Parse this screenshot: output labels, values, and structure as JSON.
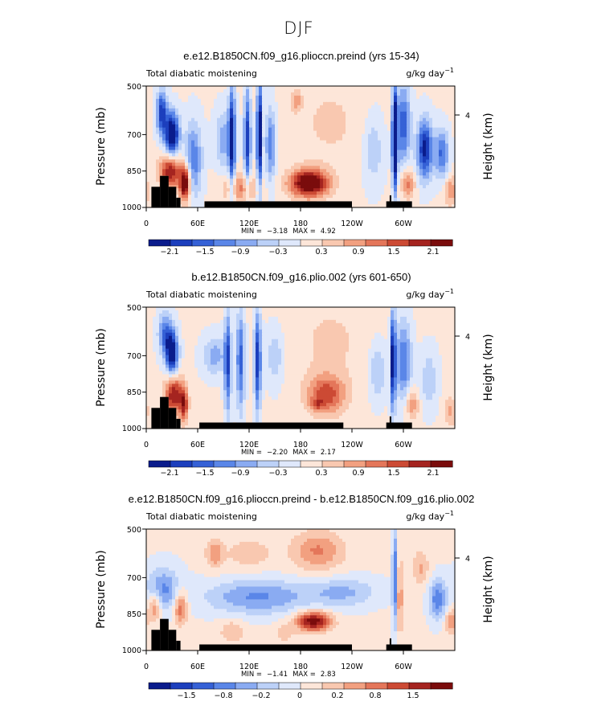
{
  "figure": {
    "title": "DJF"
  },
  "palette": {
    "frame": "#000000",
    "land": "#000000",
    "colors": [
      "#0a1c8c",
      "#1c3fbd",
      "#3561d6",
      "#5a86e8",
      "#8aabf2",
      "#bcd1f8",
      "#dfe8fb",
      "#fde6d9",
      "#f9c8b0",
      "#f2a080",
      "#e4765a",
      "#cc4a34",
      "#a52420",
      "#7a0c0c"
    ]
  },
  "chart_data": [
    {
      "type": "heatmap",
      "title": "e.e12.B1850CN.f09_g16.plioccn.preind (yrs 15-34)",
      "label_left": "Total diabatic moistening",
      "label_right_base": "g/kg day",
      "label_right_exp": "−1",
      "ylabel": "Pressure (mb)",
      "ylabel_right": "Height (km)",
      "yticks": [
        "500",
        "700",
        "850",
        "1000"
      ],
      "yticks_right": [
        "4"
      ],
      "xticks": [
        "0",
        "60E",
        "120E",
        "180",
        "120W",
        "60W"
      ],
      "xlim_deg": [
        0,
        360
      ],
      "ylim_mb": [
        1000,
        500
      ],
      "min_label": "MIN =",
      "min_value": "−3.18",
      "max_label": "MAX =",
      "max_value": "4.92",
      "colorbar_labels": [
        "−2.1",
        "−1.5",
        "−0.9",
        "−0.3",
        "0.3",
        "0.9",
        "1.5",
        "2.1"
      ],
      "land_segments": [
        {
          "lon0": 6,
          "lon1": 16,
          "p_top": 915
        },
        {
          "lon0": 16,
          "lon1": 26,
          "p_top": 870
        },
        {
          "lon0": 26,
          "lon1": 35,
          "p_top": 915
        },
        {
          "lon0": 35,
          "lon1": 40,
          "p_top": 960
        },
        {
          "lon0": 68,
          "lon1": 240,
          "p_top": 975
        },
        {
          "lon0": 284,
          "lon1": 286,
          "p_top": 950
        },
        {
          "lon0": 280,
          "lon1": 310,
          "p_top": 975
        }
      ],
      "features": [
        {
          "lon": 30,
          "p": 700,
          "sl": 8,
          "sp": 90,
          "amp": -2.6
        },
        {
          "lon": 18,
          "p": 610,
          "sl": 6,
          "sp": 90,
          "amp": -1.8
        },
        {
          "lon": 28,
          "p": 850,
          "sl": 12,
          "sp": 70,
          "amp": 1.8
        },
        {
          "lon": 45,
          "p": 900,
          "sl": 6,
          "sp": 70,
          "amp": 2.4
        },
        {
          "lon": 55,
          "p": 800,
          "sl": 10,
          "sp": 150,
          "amp": -1.2
        },
        {
          "lon": 100,
          "p": 720,
          "sl": 4,
          "sp": 220,
          "amp": -2.0
        },
        {
          "lon": 118,
          "p": 720,
          "sl": 4,
          "sp": 200,
          "amp": -1.8
        },
        {
          "lon": 132,
          "p": 700,
          "sl": 3,
          "sp": 220,
          "amp": -2.5
        },
        {
          "lon": 145,
          "p": 740,
          "sl": 6,
          "sp": 150,
          "amp": -1.2
        },
        {
          "lon": 90,
          "p": 720,
          "sl": 10,
          "sp": 120,
          "amp": -0.8
        },
        {
          "lon": 110,
          "p": 920,
          "sl": 20,
          "sp": 60,
          "amp": 0.9
        },
        {
          "lon": 190,
          "p": 900,
          "sl": 22,
          "sp": 55,
          "amp": 2.4
        },
        {
          "lon": 175,
          "p": 560,
          "sl": 6,
          "sp": 40,
          "amp": 0.7
        },
        {
          "lon": 290,
          "p": 720,
          "sl": 3,
          "sp": 200,
          "amp": -3.0
        },
        {
          "lon": 300,
          "p": 660,
          "sl": 8,
          "sp": 160,
          "amp": -1.5
        },
        {
          "lon": 325,
          "p": 760,
          "sl": 9,
          "sp": 120,
          "amp": -2.0
        },
        {
          "lon": 345,
          "p": 780,
          "sl": 8,
          "sp": 100,
          "amp": -1.3
        },
        {
          "lon": 305,
          "p": 900,
          "sl": 8,
          "sp": 60,
          "amp": 1.0
        },
        {
          "lon": 265,
          "p": 760,
          "sl": 12,
          "sp": 150,
          "amp": -0.6
        },
        {
          "lon": 355,
          "p": 930,
          "sl": 8,
          "sp": 60,
          "amp": 0.8
        },
        {
          "lon": 215,
          "p": 650,
          "sl": 45,
          "sp": 200,
          "amp": 0.3
        }
      ]
    },
    {
      "type": "heatmap",
      "title": "b.e12.B1850CN.f09_g16.plio.002 (yrs 601-650)",
      "label_left": "Total diabatic moistening",
      "label_right_base": "g/kg day",
      "label_right_exp": "−1",
      "ylabel": "Pressure (mb)",
      "ylabel_right": "Height (km)",
      "yticks": [
        "500",
        "700",
        "850",
        "1000"
      ],
      "yticks_right": [
        "4"
      ],
      "xticks": [
        "0",
        "60E",
        "120E",
        "180",
        "120W",
        "60W"
      ],
      "xlim_deg": [
        0,
        360
      ],
      "ylim_mb": [
        1000,
        500
      ],
      "min_label": "MIN =",
      "min_value": "−2.20",
      "max_label": "MAX =",
      "max_value": "2.17",
      "colorbar_labels": [
        "−2.1",
        "−1.5",
        "−0.9",
        "−0.3",
        "0.3",
        "0.9",
        "1.5",
        "2.1"
      ],
      "land_segments": [
        {
          "lon0": 6,
          "lon1": 16,
          "p_top": 915
        },
        {
          "lon0": 16,
          "lon1": 26,
          "p_top": 870
        },
        {
          "lon0": 26,
          "lon1": 35,
          "p_top": 915
        },
        {
          "lon0": 35,
          "lon1": 40,
          "p_top": 960
        },
        {
          "lon0": 62,
          "lon1": 230,
          "p_top": 975
        },
        {
          "lon0": 284,
          "lon1": 286,
          "p_top": 950
        },
        {
          "lon0": 280,
          "lon1": 310,
          "p_top": 975
        }
      ],
      "features": [
        {
          "lon": 30,
          "p": 690,
          "sl": 7,
          "sp": 90,
          "amp": -2.3
        },
        {
          "lon": 22,
          "p": 610,
          "sl": 8,
          "sp": 90,
          "amp": -1.2
        },
        {
          "lon": 32,
          "p": 860,
          "sl": 10,
          "sp": 80,
          "amp": 1.8
        },
        {
          "lon": 44,
          "p": 900,
          "sl": 5,
          "sp": 70,
          "amp": 1.5
        },
        {
          "lon": 95,
          "p": 730,
          "sl": 4,
          "sp": 200,
          "amp": -1.6
        },
        {
          "lon": 110,
          "p": 720,
          "sl": 5,
          "sp": 200,
          "amp": -1.4
        },
        {
          "lon": 130,
          "p": 720,
          "sl": 4,
          "sp": 200,
          "amp": -1.8
        },
        {
          "lon": 80,
          "p": 700,
          "sl": 14,
          "sp": 80,
          "amp": -0.8
        },
        {
          "lon": 150,
          "p": 700,
          "sl": 10,
          "sp": 120,
          "amp": -0.6
        },
        {
          "lon": 210,
          "p": 860,
          "sl": 22,
          "sp": 80,
          "amp": 1.3
        },
        {
          "lon": 200,
          "p": 900,
          "sl": 8,
          "sp": 25,
          "amp": 0.6
        },
        {
          "lon": 288,
          "p": 720,
          "sl": 3,
          "sp": 200,
          "amp": -2.2
        },
        {
          "lon": 300,
          "p": 720,
          "sl": 9,
          "sp": 160,
          "amp": -1.3
        },
        {
          "lon": 270,
          "p": 760,
          "sl": 10,
          "sp": 120,
          "amp": -0.7
        },
        {
          "lon": 310,
          "p": 900,
          "sl": 8,
          "sp": 60,
          "amp": 0.8
        },
        {
          "lon": 330,
          "p": 800,
          "sl": 10,
          "sp": 120,
          "amp": -0.6
        },
        {
          "lon": 355,
          "p": 930,
          "sl": 8,
          "sp": 60,
          "amp": 0.6
        },
        {
          "lon": 215,
          "p": 640,
          "sl": 50,
          "sp": 200,
          "amp": 0.3
        }
      ]
    },
    {
      "type": "heatmap",
      "title": "e.e12.B1850CN.f09_g16.plioccn.preind - b.e12.B1850CN.f09_g16.plio.002",
      "label_left": "Total diabatic moistening",
      "label_right_base": "g/kg day",
      "label_right_exp": "−1",
      "ylabel": "Pressure (mb)",
      "ylabel_right": "Height (km)",
      "yticks": [
        "500",
        "700",
        "850",
        "1000"
      ],
      "yticks_right": [
        "4"
      ],
      "xticks": [
        "0",
        "60E",
        "120E",
        "180",
        "120W",
        "60W"
      ],
      "xlim_deg": [
        0,
        360
      ],
      "ylim_mb": [
        1000,
        500
      ],
      "min_label": "MIN =",
      "min_value": "−1.41",
      "max_label": "MAX =",
      "max_value": "2.83",
      "colorbar_labels": [
        "−1.5",
        "−0.8",
        "−0.2",
        "0",
        "0.2",
        "0.8",
        "1.5"
      ],
      "land_segments": [
        {
          "lon0": 6,
          "lon1": 16,
          "p_top": 915
        },
        {
          "lon0": 16,
          "lon1": 26,
          "p_top": 870
        },
        {
          "lon0": 26,
          "lon1": 35,
          "p_top": 915
        },
        {
          "lon0": 35,
          "lon1": 40,
          "p_top": 960
        },
        {
          "lon0": 62,
          "lon1": 240,
          "p_top": 975
        },
        {
          "lon0": 284,
          "lon1": 286,
          "p_top": 950
        },
        {
          "lon0": 280,
          "lon1": 310,
          "p_top": 975
        }
      ],
      "features": [
        {
          "lon": 20,
          "p": 750,
          "sl": 20,
          "sp": 90,
          "amp": -1.0
        },
        {
          "lon": 10,
          "p": 820,
          "sl": 8,
          "sp": 60,
          "amp": 1.0
        },
        {
          "lon": 40,
          "p": 820,
          "sl": 8,
          "sp": 70,
          "amp": 1.2
        },
        {
          "lon": 80,
          "p": 600,
          "sl": 10,
          "sp": 60,
          "amp": 0.8
        },
        {
          "lon": 130,
          "p": 780,
          "sl": 60,
          "sp": 70,
          "amp": -1.0
        },
        {
          "lon": 230,
          "p": 760,
          "sl": 40,
          "sp": 60,
          "amp": -0.7
        },
        {
          "lon": 195,
          "p": 880,
          "sl": 20,
          "sp": 40,
          "amp": 2.0
        },
        {
          "lon": 200,
          "p": 590,
          "sl": 30,
          "sp": 80,
          "amp": 0.9
        },
        {
          "lon": 120,
          "p": 600,
          "sl": 25,
          "sp": 60,
          "amp": 0.5
        },
        {
          "lon": 290,
          "p": 700,
          "sl": 3,
          "sp": 200,
          "amp": -1.3
        },
        {
          "lon": 296,
          "p": 780,
          "sl": 3,
          "sp": 150,
          "amp": 1.0
        },
        {
          "lon": 340,
          "p": 790,
          "sl": 10,
          "sp": 80,
          "amp": -1.2
        },
        {
          "lon": 320,
          "p": 660,
          "sl": 10,
          "sp": 70,
          "amp": 0.6
        },
        {
          "lon": 355,
          "p": 880,
          "sl": 6,
          "sp": 50,
          "amp": 0.9
        },
        {
          "lon": 100,
          "p": 920,
          "sl": 15,
          "sp": 50,
          "amp": 0.5
        },
        {
          "lon": 160,
          "p": 930,
          "sl": 12,
          "sp": 40,
          "amp": 0.4
        }
      ]
    }
  ]
}
